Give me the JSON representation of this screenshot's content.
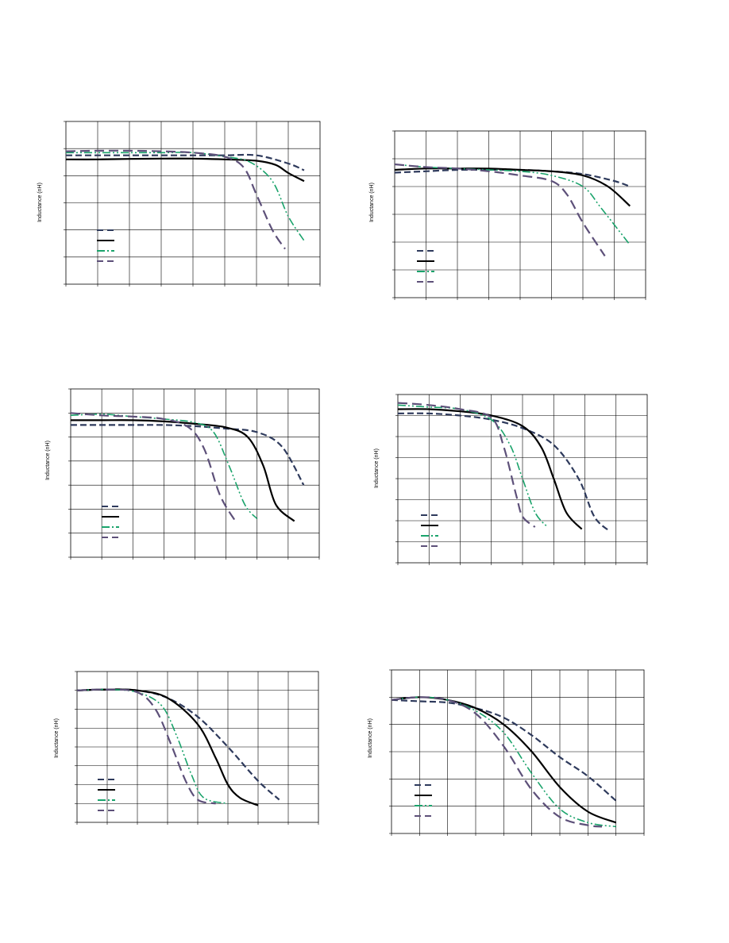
{
  "chart_data": [
    {
      "type": "line",
      "xlabel": "",
      "ylabel": "Inductance (nH)",
      "grid": true,
      "xlim": [
        0,
        8
      ],
      "ylim": [
        0,
        6
      ],
      "legend": "lower-left",
      "series": [
        {
          "name": "",
          "color": "#2e3a5c",
          "style": "dash",
          "points": [
            [
              0,
              4.75
            ],
            [
              1,
              4.75
            ],
            [
              2,
              4.75
            ],
            [
              3,
              4.75
            ],
            [
              4,
              4.75
            ],
            [
              5,
              4.75
            ],
            [
              6,
              4.75
            ],
            [
              7,
              4.45
            ],
            [
              7.5,
              4.2
            ]
          ]
        },
        {
          "name": "",
          "color": "#000000",
          "style": "solid",
          "points": [
            [
              0,
              4.6
            ],
            [
              1,
              4.6
            ],
            [
              2,
              4.62
            ],
            [
              3,
              4.63
            ],
            [
              4,
              4.63
            ],
            [
              5,
              4.6
            ],
            [
              6,
              4.55
            ],
            [
              6.6,
              4.4
            ],
            [
              7,
              4.1
            ],
            [
              7.5,
              3.8
            ]
          ]
        },
        {
          "name": "",
          "color": "#1aa36b",
          "style": "dashdotdot",
          "points": [
            [
              0,
              4.85
            ],
            [
              1,
              4.85
            ],
            [
              2,
              4.85
            ],
            [
              3,
              4.85
            ],
            [
              4,
              4.85
            ],
            [
              5,
              4.7
            ],
            [
              5.8,
              4.5
            ],
            [
              6.5,
              3.8
            ],
            [
              7,
              2.5
            ],
            [
              7.5,
              1.6
            ]
          ]
        },
        {
          "name": "",
          "color": "#5d5079",
          "style": "longdash",
          "points": [
            [
              0,
              4.9
            ],
            [
              1,
              4.92
            ],
            [
              2,
              4.92
            ],
            [
              3,
              4.9
            ],
            [
              4,
              4.85
            ],
            [
              5,
              4.7
            ],
            [
              5.6,
              4.3
            ],
            [
              6,
              3.3
            ],
            [
              6.5,
              2.0
            ],
            [
              6.9,
              1.3
            ]
          ]
        }
      ]
    },
    {
      "type": "line",
      "xlabel": "",
      "ylabel": "Inductance (nH)",
      "grid": true,
      "xlim": [
        0,
        8
      ],
      "ylim": [
        0,
        6
      ],
      "legend": "lower-left",
      "series": [
        {
          "name": "",
          "color": "#2e3a5c",
          "style": "dash",
          "points": [
            [
              0,
              4.5
            ],
            [
              1,
              4.55
            ],
            [
              2,
              4.6
            ],
            [
              3,
              4.6
            ],
            [
              4,
              4.6
            ],
            [
              5,
              4.55
            ],
            [
              6,
              4.45
            ],
            [
              7,
              4.2
            ],
            [
              7.5,
              4.0
            ]
          ]
        },
        {
          "name": "",
          "color": "#000000",
          "style": "solid",
          "points": [
            [
              0,
              4.6
            ],
            [
              1,
              4.65
            ],
            [
              2,
              4.65
            ],
            [
              3,
              4.65
            ],
            [
              4,
              4.6
            ],
            [
              5,
              4.55
            ],
            [
              6,
              4.4
            ],
            [
              6.8,
              4.0
            ],
            [
              7.5,
              3.3
            ]
          ]
        },
        {
          "name": "",
          "color": "#1aa36b",
          "style": "dashdotdot",
          "points": [
            [
              0,
              4.8
            ],
            [
              1,
              4.7
            ],
            [
              2,
              4.65
            ],
            [
              3,
              4.6
            ],
            [
              4,
              4.55
            ],
            [
              5,
              4.4
            ],
            [
              6,
              4.0
            ],
            [
              6.6,
              3.2
            ],
            [
              7.5,
              1.9
            ]
          ]
        },
        {
          "name": "",
          "color": "#5d5079",
          "style": "longdash",
          "points": [
            [
              0,
              4.8
            ],
            [
              1,
              4.7
            ],
            [
              2,
              4.65
            ],
            [
              3,
              4.55
            ],
            [
              4,
              4.4
            ],
            [
              5,
              4.2
            ],
            [
              5.5,
              3.7
            ],
            [
              6,
              2.7
            ],
            [
              6.7,
              1.5
            ]
          ]
        }
      ]
    },
    {
      "type": "line",
      "xlabel": "",
      "ylabel": "Inductance (nH)",
      "grid": true,
      "xlim": [
        0,
        8
      ],
      "ylim": [
        0,
        7
      ],
      "legend": "lower-left",
      "series": [
        {
          "name": "",
          "color": "#2e3a5c",
          "style": "dash",
          "points": [
            [
              0,
              5.5
            ],
            [
              1,
              5.5
            ],
            [
              2,
              5.5
            ],
            [
              3,
              5.5
            ],
            [
              4,
              5.45
            ],
            [
              5,
              5.35
            ],
            [
              6,
              5.2
            ],
            [
              6.8,
              4.6
            ],
            [
              7.5,
              3.0
            ]
          ]
        },
        {
          "name": "",
          "color": "#000000",
          "style": "solid",
          "points": [
            [
              0,
              5.7
            ],
            [
              1,
              5.7
            ],
            [
              2,
              5.7
            ],
            [
              3,
              5.65
            ],
            [
              4,
              5.55
            ],
            [
              5,
              5.4
            ],
            [
              5.7,
              5.0
            ],
            [
              6.2,
              3.8
            ],
            [
              6.6,
              2.2
            ],
            [
              7.2,
              1.5
            ]
          ]
        },
        {
          "name": "",
          "color": "#1aa36b",
          "style": "dashdotdot",
          "points": [
            [
              0,
              5.9
            ],
            [
              1,
              5.95
            ],
            [
              2,
              5.85
            ],
            [
              3,
              5.75
            ],
            [
              4,
              5.6
            ],
            [
              4.6,
              5.2
            ],
            [
              5.1,
              3.8
            ],
            [
              5.6,
              2.2
            ],
            [
              6,
              1.6
            ]
          ]
        },
        {
          "name": "",
          "color": "#5d5079",
          "style": "longdash",
          "points": [
            [
              0,
              6.0
            ],
            [
              1,
              5.9
            ],
            [
              2,
              5.85
            ],
            [
              3,
              5.75
            ],
            [
              3.8,
              5.4
            ],
            [
              4.3,
              4.5
            ],
            [
              4.8,
              2.6
            ],
            [
              5.3,
              1.5
            ]
          ]
        }
      ]
    },
    {
      "type": "line",
      "xlabel": "",
      "ylabel": "Inductance (nH)",
      "grid": true,
      "xlim": [
        0,
        8
      ],
      "ylim": [
        0,
        8
      ],
      "legend": "lower-left",
      "series": [
        {
          "name": "",
          "color": "#2e3a5c",
          "style": "dash",
          "points": [
            [
              0,
              7.1
            ],
            [
              1,
              7.1
            ],
            [
              2,
              7.0
            ],
            [
              3,
              6.8
            ],
            [
              4,
              6.4
            ],
            [
              5,
              5.6
            ],
            [
              5.8,
              4.0
            ],
            [
              6.3,
              2.2
            ],
            [
              6.8,
              1.5
            ]
          ]
        },
        {
          "name": "",
          "color": "#000000",
          "style": "solid",
          "points": [
            [
              0,
              7.3
            ],
            [
              1,
              7.3
            ],
            [
              2,
              7.2
            ],
            [
              3,
              7.0
            ],
            [
              4,
              6.5
            ],
            [
              4.6,
              5.5
            ],
            [
              5,
              4.0
            ],
            [
              5.4,
              2.4
            ],
            [
              5.9,
              1.6
            ]
          ]
        },
        {
          "name": "",
          "color": "#1aa36b",
          "style": "dashdotdot",
          "points": [
            [
              0,
              7.5
            ],
            [
              1,
              7.4
            ],
            [
              2,
              7.3
            ],
            [
              3,
              6.8
            ],
            [
              3.6,
              5.6
            ],
            [
              4,
              4.0
            ],
            [
              4.4,
              2.4
            ],
            [
              4.8,
              1.7
            ]
          ]
        },
        {
          "name": "",
          "color": "#5d5079",
          "style": "longdash",
          "points": [
            [
              0,
              7.6
            ],
            [
              1,
              7.5
            ],
            [
              2,
              7.3
            ],
            [
              3,
              6.9
            ],
            [
              3.4,
              5.5
            ],
            [
              3.8,
              3.2
            ],
            [
              4,
              2.2
            ],
            [
              4.4,
              1.7
            ]
          ]
        }
      ]
    },
    {
      "type": "line",
      "xlabel": "",
      "ylabel": "Inductance (nH)",
      "grid": true,
      "xlim": [
        0,
        8
      ],
      "ylim": [
        0,
        8
      ],
      "legend": "lower-left",
      "series": [
        {
          "name": "",
          "color": "#2e3a5c",
          "style": "dash",
          "points": [
            [
              0,
              7.0
            ],
            [
              1,
              7.05
            ],
            [
              2,
              7.0
            ],
            [
              3,
              6.6
            ],
            [
              4,
              5.6
            ],
            [
              5,
              4.0
            ],
            [
              6,
              2.2
            ],
            [
              6.7,
              1.2
            ]
          ]
        },
        {
          "name": "",
          "color": "#000000",
          "style": "solid",
          "points": [
            [
              0,
              7.0
            ],
            [
              1,
              7.05
            ],
            [
              2,
              7.0
            ],
            [
              3,
              6.6
            ],
            [
              4,
              5.2
            ],
            [
              4.6,
              3.4
            ],
            [
              5,
              2.0
            ],
            [
              5.4,
              1.3
            ],
            [
              6,
              0.9
            ]
          ]
        },
        {
          "name": "",
          "color": "#1aa36b",
          "style": "dashdotdot",
          "points": [
            [
              0,
              7.0
            ],
            [
              1,
              7.05
            ],
            [
              2,
              6.9
            ],
            [
              2.8,
              6.2
            ],
            [
              3.3,
              4.6
            ],
            [
              3.8,
              2.5
            ],
            [
              4.2,
              1.3
            ],
            [
              5,
              1.0
            ]
          ]
        },
        {
          "name": "",
          "color": "#5d5079",
          "style": "longdash",
          "points": [
            [
              0,
              7.0
            ],
            [
              1,
              7.05
            ],
            [
              2,
              6.9
            ],
            [
              2.6,
              6.0
            ],
            [
              3.1,
              4.2
            ],
            [
              3.6,
              2.2
            ],
            [
              4,
              1.2
            ],
            [
              4.6,
              1.0
            ]
          ]
        }
      ]
    },
    {
      "type": "line",
      "xlabel": "",
      "ylabel": "Inductance (nH)",
      "grid": true,
      "xlim": [
        0,
        9
      ],
      "ylim": [
        0,
        6
      ],
      "legend": "lower-left",
      "series": [
        {
          "name": "",
          "color": "#2e3a5c",
          "style": "dash",
          "points": [
            [
              0,
              4.9
            ],
            [
              1,
              4.85
            ],
            [
              2,
              4.8
            ],
            [
              3,
              4.6
            ],
            [
              4,
              4.25
            ],
            [
              5,
              3.6
            ],
            [
              6,
              2.8
            ],
            [
              7,
              2.1
            ],
            [
              8,
              1.2
            ]
          ]
        },
        {
          "name": "",
          "color": "#000000",
          "style": "solid",
          "points": [
            [
              0,
              4.9
            ],
            [
              1,
              5.0
            ],
            [
              2,
              4.9
            ],
            [
              3,
              4.6
            ],
            [
              4,
              4.0
            ],
            [
              5,
              3.0
            ],
            [
              6,
              1.7
            ],
            [
              7,
              0.8
            ],
            [
              8,
              0.4
            ]
          ]
        },
        {
          "name": "",
          "color": "#1aa36b",
          "style": "dashdotdot",
          "points": [
            [
              0,
              4.9
            ],
            [
              1,
              5.0
            ],
            [
              2,
              4.9
            ],
            [
              3,
              4.5
            ],
            [
              4,
              3.7
            ],
            [
              5,
              2.2
            ],
            [
              6,
              0.9
            ],
            [
              7,
              0.4
            ],
            [
              8,
              0.25
            ]
          ]
        },
        {
          "name": "",
          "color": "#5d5079",
          "style": "longdash",
          "points": [
            [
              0,
              4.9
            ],
            [
              1,
              5.0
            ],
            [
              2,
              4.9
            ],
            [
              3,
              4.4
            ],
            [
              4,
              3.2
            ],
            [
              5,
              1.6
            ],
            [
              6,
              0.6
            ],
            [
              7,
              0.3
            ],
            [
              7.5,
              0.25
            ]
          ]
        }
      ]
    }
  ]
}
